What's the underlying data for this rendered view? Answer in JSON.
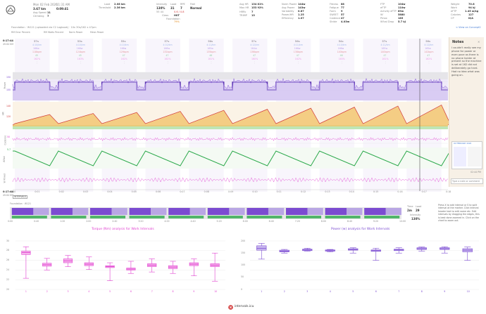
{
  "header": {
    "date": "Mon 02 Feb 2026",
    "time": "11:31 AM",
    "distance": "3.67 km",
    "duration": "0:09:41",
    "avg_speed_label": "Avg Speed",
    "avg_speed": "11",
    "climbing_label": "Climbing",
    "climbing": "7",
    "load_label": "Load",
    "load": "2.08 km",
    "threshold_label": "Threshold",
    "threshold": "2.36 km",
    "intensity_label": "Intensity",
    "intensity": "130%",
    "load_val_label": "Load",
    "load_val": "31",
    "rpe_label": "RPE",
    "rpe": "7",
    "feel_label": "Feel",
    "feel": "Normal",
    "class_label": "Class",
    "class_val": "HIIT",
    "zone_counts": "55 44",
    "zone_coupling": "0.6 / 0.8",
    "foundation_label": "Foundation",
    "foundation_pct": "79%",
    "avg_hr_label": "Avg HR",
    "avg_hr": "134 81%",
    "max_hr_label": "Max HR",
    "max_hr": "153 92%",
    "hrrc_label": "HRRc",
    "hrrc": "7",
    "trimp_label": "TRIMP",
    "trimp": "13",
    "norm_power_label": "Norm Power",
    "norm_power": "144w",
    "avg_power_label": "Avg Power",
    "avg_power": "143w",
    "variability_label": "Variability",
    "variability": "0.87",
    "power_hr_label": "Power/HR",
    "power_hr": "1.25",
    "decoupling_label": "Decoupling",
    "decoupling": "-5%",
    "efficiency_label": "Efficiency",
    "efficiency": "1.07",
    "fitness_label": "Fitness",
    "fitness": "88",
    "fatigue_label": "Fatigue",
    "fatigue": "77",
    "form_label": "Form",
    "form": "9",
    "sweet_label": "SWEET",
    "sweet": "57",
    "cadence_label": "Cadence",
    "cadence": "47",
    "stride_label": "Stride",
    "stride": "4.03m",
    "ftp_label": "FTP",
    "ftp": "104w",
    "eftp_label": "eFTP",
    "eftp": "110w",
    "activity_ftp_label": "Activity eFTP",
    "activity_ftp": "89w",
    "w_prime_label": "W'",
    "w_prime": "5880",
    "pmax_label": "Pmax",
    "pmax": "185",
    "w_drop_label": "W'bal Drop",
    "w_drop": "5.7 kJ",
    "weight_label": "Weight",
    "weight": "70.8",
    "work_label": "Work",
    "work": "94 kJ",
    "wftp_label": "eFTP",
    "wftp": "1.45 w/kg",
    "calories_label": "Calories",
    "calories": "127",
    "cp_label": "CP",
    "cp": "N/A",
    "view_on_link": "< View on Concept2"
  },
  "foundation_line": "Foundation · W121 (uploaded via C2 Logbook) · 10x 30s/162 x 47pm",
  "summary_tabs": [
    "RM Error Percent",
    "RM Watts Percent",
    "Norm Power",
    "Mean Power"
  ],
  "intervals": [
    {
      "dur": "57s",
      "dist": "4:10/km",
      "power": "166w",
      "hr": "118bpm",
      "cad": "45",
      "sub": "162%"
    },
    {
      "dur": "53s",
      "dist": "4:10/km",
      "power": "166w",
      "hr": "124bpm",
      "cad": "45",
      "sub": "163%"
    },
    {
      "dur": "53s",
      "dist": "4:10/km",
      "power": "166w",
      "hr": "129bpm",
      "cad": "47",
      "sub": "162%"
    },
    {
      "dur": "57s",
      "dist": "4:10/km",
      "power": "166w",
      "hr": "132bpm",
      "cad": "47",
      "sub": "162%"
    },
    {
      "dur": "56s",
      "dist": "4:11/km",
      "power": "165w",
      "hr": "135bpm",
      "cad": "46",
      "sub": "161%"
    },
    {
      "dur": "57s",
      "dist": "4:12/km",
      "power": "164w",
      "hr": "136bpm",
      "cad": "47",
      "sub": "160%"
    },
    {
      "dur": "56s",
      "dist": "4:11/km",
      "power": "166w",
      "hr": "138bpm",
      "cad": "47",
      "sub": "162%"
    },
    {
      "dur": "54s",
      "dist": "4:10/km",
      "power": "166w",
      "hr": "140bpm",
      "cad": "46",
      "sub": "163%"
    },
    {
      "dur": "57s",
      "dist": "4:11/km",
      "power": "165w",
      "hr": "140bpm",
      "cad": "47",
      "sub": "161%"
    },
    {
      "dur": "56s",
      "dist": "4:12/km",
      "power": "165w",
      "hr": "142bpm",
      "cad": "47",
      "sub": "162%"
    }
  ],
  "chart_axis_labels": {
    "pace": "Power",
    "hr": "HR",
    "cadence": "Cadence",
    "w_bal": "W'bal",
    "wpower": "W Power"
  },
  "time_ticks": [
    "0:00",
    "0:01",
    "0:02",
    "0:03",
    "0:04",
    "0:05",
    "0:06",
    "0:07",
    "0:08",
    "0:09",
    "0:10",
    "0:11",
    "0:12",
    "0:13",
    "0:14",
    "0:15",
    "0:16",
    "0:17",
    "0:18"
  ],
  "legend_bottom": "Type a note or comment",
  "time_start": "0:17:44",
  "distance_start": "49.64 KM",
  "intervals_btn": "INTERVALS",
  "lower_axis_ticks": [
    "0:00",
    "0:40",
    "1:20",
    "2:00",
    "2:40",
    "3:20",
    "4:00",
    "4:40",
    "5:20",
    "6:00",
    "6:40",
    "7:20",
    "8:00",
    "8:40",
    "9:20",
    "10:00"
  ],
  "foundation_bottom": "Foundation · W121",
  "stats_box": {
    "time_label": "Time",
    "time": "2m",
    "load_label": "Load",
    "load": "29",
    "intensity_label": "Intensity",
    "intensity": "130%"
  },
  "help_text": "Press X to add interval or S to split interval at the marker. Click interval header text to edit name etc. Edit intervals by dragging the edges, this is best done zoomed in. Click on the chart to zoom out.",
  "notes": {
    "title": "Notes",
    "text": "I couldn't really see my phone for power or even pace as there is no phone holder at present so the machine is set at 162 did not deliberately go hard. Had no idea what was going on.",
    "date_label": "02 FEBRUARY 2026",
    "edit_time": "02:44 PM"
  },
  "torque_chart": {
    "title": "Torque (Nm) analysis for Work Intervals",
    "ylim": [
      20,
      30
    ],
    "yticks": [
      "30",
      "28",
      "26",
      "24",
      "22",
      "20"
    ],
    "xticks": [
      "1",
      "2",
      "3",
      "4",
      "5",
      "6",
      "7",
      "8",
      "9",
      "10"
    ]
  },
  "power_chart": {
    "title": "Power (w) analysis for Work Intervals",
    "ylim": [
      0,
      200
    ],
    "yticks": [
      "200",
      "150",
      "100",
      "50",
      "0"
    ],
    "xticks": [
      "1",
      "2",
      "3",
      "4",
      "5",
      "6",
      "7",
      "8",
      "9",
      "10"
    ]
  },
  "chart_data": [
    {
      "type": "box",
      "title": "Torque (Nm) analysis for Work Intervals",
      "categories": [
        "1",
        "2",
        "3",
        "4",
        "5",
        "6",
        "7",
        "8",
        "9",
        "10"
      ],
      "median": [
        27.6,
        25.1,
        25.9,
        25.2,
        24.7,
        24.2,
        25.0,
        24.6,
        25.2,
        25.0
      ],
      "q1": [
        27.2,
        24.8,
        25.5,
        24.9,
        24.5,
        24.0,
        24.7,
        24.3,
        24.9,
        24.7
      ],
      "q3": [
        27.9,
        25.4,
        26.3,
        25.5,
        24.9,
        24.4,
        25.3,
        24.9,
        25.5,
        25.3
      ],
      "min": [
        22.3,
        24.0,
        24.7,
        24.1,
        21.8,
        23.3,
        23.6,
        23.3,
        22.8,
        21.7
      ],
      "max": [
        28.8,
        26.4,
        27.0,
        26.7,
        25.5,
        25.8,
        26.3,
        25.8,
        26.3,
        27.5
      ],
      "ylim": [
        20,
        30
      ]
    },
    {
      "type": "box",
      "title": "Power (w) analysis for Work Intervals",
      "categories": [
        "1",
        "2",
        "3",
        "4",
        "5",
        "6",
        "7",
        "8",
        "9",
        "10"
      ],
      "median": [
        170,
        158,
        163,
        160,
        165,
        160,
        163,
        168,
        168,
        162
      ],
      "q1": [
        162,
        155,
        160,
        158,
        162,
        157,
        160,
        165,
        165,
        155
      ],
      "q3": [
        180,
        162,
        166,
        163,
        168,
        163,
        166,
        172,
        172,
        168
      ],
      "min": [
        125,
        150,
        158,
        155,
        150,
        120,
        150,
        158,
        150,
        120
      ],
      "max": [
        190,
        165,
        170,
        165,
        172,
        170,
        172,
        175,
        176,
        175
      ],
      "ylim": [
        0,
        200
      ]
    }
  ],
  "footer": "intervals.icu",
  "colors": {
    "purple": "#7b4bd1",
    "pink": "#e040d0",
    "hr_fill": "#f3c36b",
    "green": "#2aa84a",
    "zone_gray": "#e6e6e6"
  }
}
